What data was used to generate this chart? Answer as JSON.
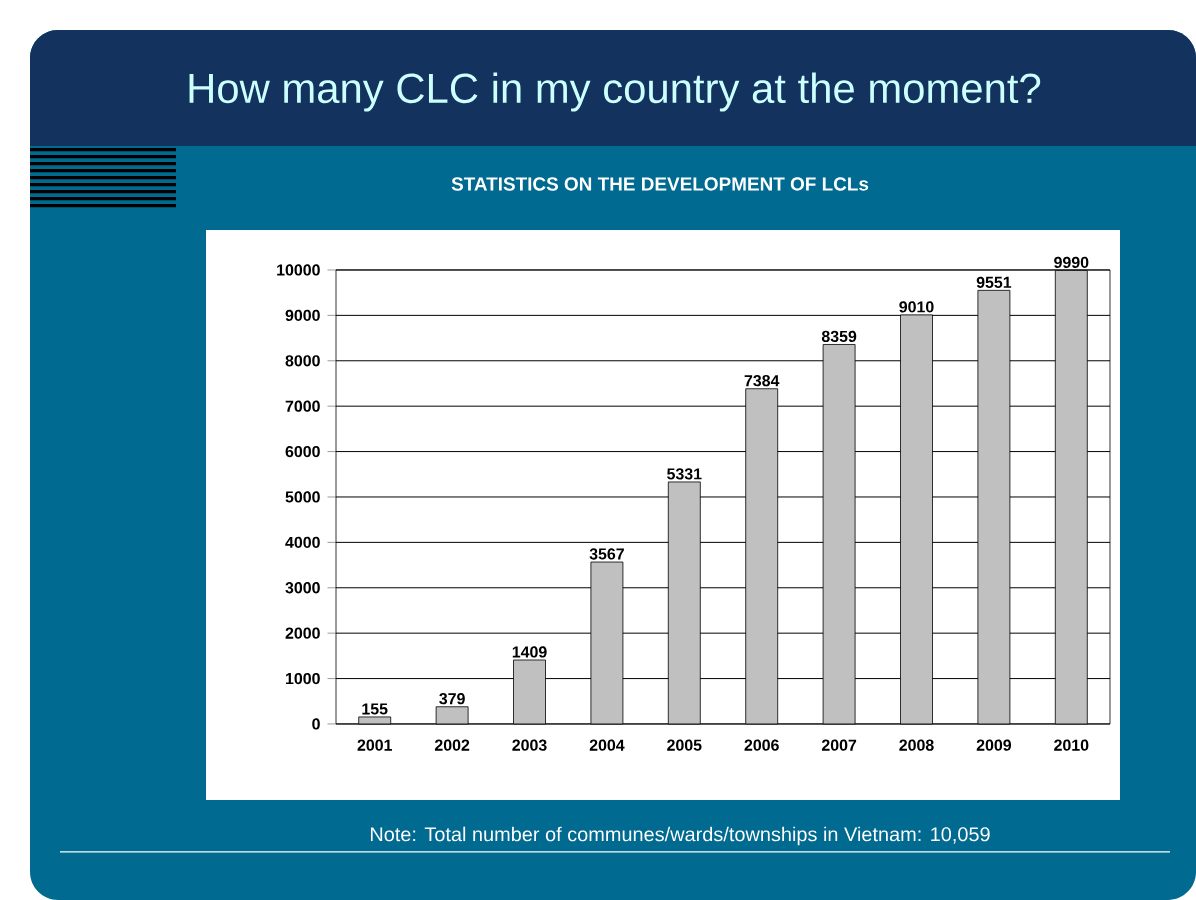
{
  "chart_data": {
    "type": "bar",
    "title": "How many CLC in my country at the moment?",
    "subtitle": "STATISTICS ON THE DEVELOPMENT OF LCLs",
    "categories": [
      "2001",
      "2002",
      "2003",
      "2004",
      "2005",
      "2006",
      "2007",
      "2008",
      "2009",
      "2010"
    ],
    "values": [
      155,
      379,
      1409,
      3567,
      5331,
      7384,
      8359,
      9010,
      9551,
      9990
    ],
    "color": "#c0c0c0",
    "ylim": [
      0,
      10000
    ],
    "yticks": [
      0,
      1000,
      2000,
      3000,
      4000,
      5000,
      6000,
      7000,
      8000,
      9000,
      10000
    ],
    "grid": "y",
    "data_labels": true,
    "annotations": [
      "Note: Total number of communes/wards/townships in Vietnam: 10,059"
    ]
  }
}
